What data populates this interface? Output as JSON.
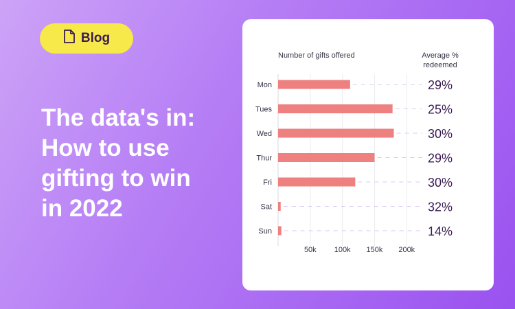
{
  "badge": {
    "label": "Blog",
    "icon": "document-icon"
  },
  "headline": {
    "lines": [
      "The data's in:",
      "How to use",
      "gifting to win",
      "in 2022"
    ]
  },
  "colors": {
    "bar": "#ee8080",
    "percent_text": "#3b1b52",
    "badge_bg": "#f7e94a",
    "badge_text": "#3b1b52"
  },
  "chart_data": {
    "type": "bar",
    "orientation": "horizontal",
    "xlabel": "Number of gifts offered",
    "right_label": "Average % redeemed",
    "categories": [
      "Mon",
      "Tues",
      "Wed",
      "Thur",
      "Fri",
      "Sat",
      "Sun"
    ],
    "values": [
      112000,
      178000,
      180000,
      150000,
      120000,
      4000,
      5000
    ],
    "redeemed": [
      "29%",
      "25%",
      "30%",
      "29%",
      "30%",
      "32%",
      "14%"
    ],
    "xlim": [
      0,
      220000
    ],
    "xticks": [
      50000,
      100000,
      150000,
      200000
    ],
    "xtick_labels": [
      "50k",
      "100k",
      "150k",
      "200k"
    ],
    "grid": true
  }
}
